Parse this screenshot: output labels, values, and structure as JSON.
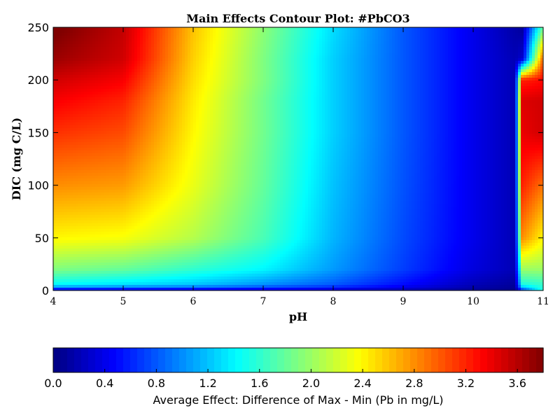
{
  "chart_data": {
    "type": "heatmap",
    "title": "Main Effects Contour Plot: #PbCO3",
    "xlabel": "pH",
    "ylabel": "DIC (mg C/L)",
    "xlim": [
      4,
      11
    ],
    "ylim": [
      0,
      250
    ],
    "x_ticks": [
      "4",
      "5",
      "6",
      "7",
      "8",
      "9",
      "10",
      "11"
    ],
    "y_ticks": [
      "0",
      "50",
      "100",
      "150",
      "200",
      "250"
    ],
    "x": [
      4,
      5,
      6,
      7,
      8,
      9,
      10,
      10.6,
      10.7,
      11
    ],
    "y": [
      0,
      5,
      20,
      50,
      100,
      150,
      180,
      200,
      220,
      250
    ],
    "z": [
      [
        0.3,
        0.3,
        0.3,
        0.3,
        0.25,
        0.2,
        0.1,
        0.05,
        0.6,
        1.6
      ],
      [
        1.4,
        1.3,
        1.2,
        1.0,
        0.8,
        0.5,
        0.2,
        0.1,
        1.5,
        1.6
      ],
      [
        1.9,
        1.8,
        1.6,
        1.4,
        1.05,
        0.7,
        0.35,
        0.2,
        2.0,
        2.0
      ],
      [
        2.4,
        2.35,
        2.1,
        1.7,
        1.15,
        0.75,
        0.4,
        0.2,
        2.8,
        2.4
      ],
      [
        2.8,
        2.75,
        2.3,
        1.8,
        1.2,
        0.78,
        0.4,
        0.2,
        3.2,
        2.9
      ],
      [
        3.15,
        3.05,
        2.4,
        1.85,
        1.25,
        0.8,
        0.4,
        0.2,
        3.4,
        3.5
      ],
      [
        3.35,
        3.2,
        2.45,
        1.85,
        1.25,
        0.8,
        0.4,
        0.2,
        3.45,
        3.5
      ],
      [
        3.5,
        3.35,
        2.5,
        1.9,
        1.25,
        0.8,
        0.4,
        0.2,
        3.2,
        3.3
      ],
      [
        3.7,
        3.5,
        2.55,
        1.9,
        1.25,
        0.8,
        0.4,
        0.2,
        0.3,
        3.0
      ],
      [
        3.85,
        3.55,
        2.6,
        1.95,
        1.3,
        0.8,
        0.4,
        0.15,
        0.1,
        1.8
      ]
    ],
    "colorbar": {
      "label": "Average Effect: Difference of Max - Min (Pb in mg/L)",
      "range": [
        0,
        3.8
      ],
      "ticks": [
        "0.0",
        "0.4",
        "0.8",
        "1.2",
        "1.6",
        "2.0",
        "2.4",
        "2.8",
        "3.2",
        "3.6"
      ],
      "colormap": "jet"
    },
    "grid": false
  }
}
